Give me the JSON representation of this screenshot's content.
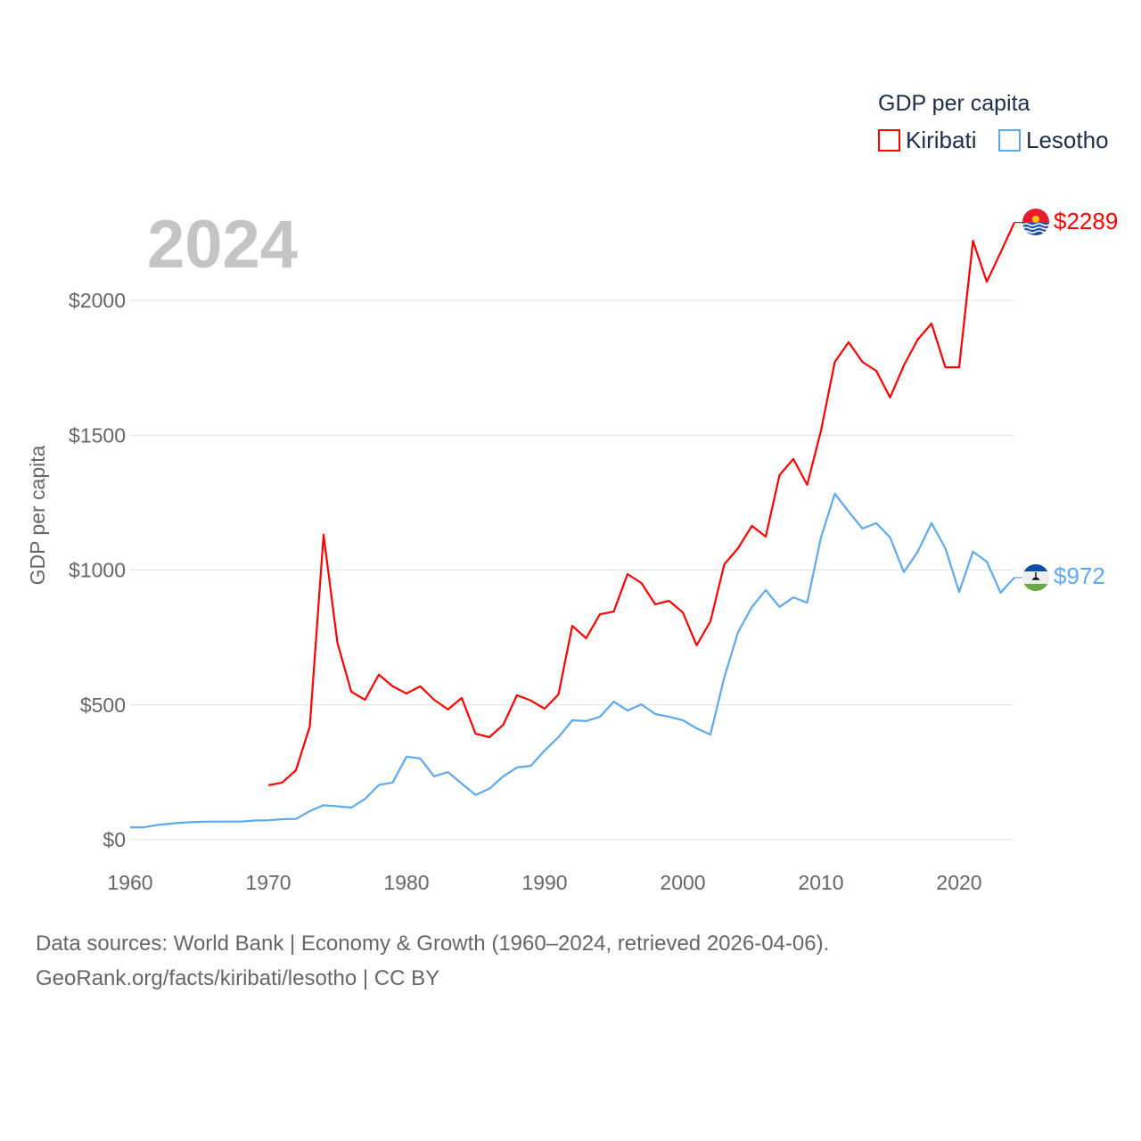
{
  "chart_data": {
    "type": "line",
    "title": "GDP per capita",
    "current_year_label": "2024",
    "ylabel": "GDP per capita",
    "xlabel": "",
    "xlim": [
      1960,
      2024
    ],
    "ylim": [
      0,
      2300
    ],
    "x_ticks": [
      "1960",
      "1970",
      "1980",
      "1990",
      "2000",
      "2010",
      "2020"
    ],
    "x_tick_values": [
      1960,
      1970,
      1980,
      1990,
      2000,
      2010,
      2020
    ],
    "y_ticks": [
      "$0",
      "$500",
      "$1000",
      "$1500",
      "$2000"
    ],
    "y_tick_values": [
      0,
      500,
      1000,
      1500,
      2000
    ],
    "grid": true,
    "legend_position": "top-right",
    "series": [
      {
        "name": "Kiribati",
        "color": "#ff0000",
        "end_label": "$2289",
        "flag": "kiribati-flag",
        "start_year": 1970,
        "values": [
          202,
          212,
          258,
          420,
          1131,
          731,
          549,
          519,
          612,
          569,
          542,
          569,
          519,
          483,
          526,
          393,
          380,
          426,
          536,
          516,
          486,
          539,
          793,
          747,
          836,
          846,
          985,
          952,
          873,
          886,
          843,
          721,
          810,
          1021,
          1081,
          1164,
          1124,
          1352,
          1412,
          1316,
          1517,
          1772,
          1845,
          1772,
          1739,
          1640,
          1759,
          1855,
          1914,
          1752,
          1752,
          2221,
          2069,
          2178,
          2289
        ]
      },
      {
        "name": "Lesotho",
        "color": "#5ea8ee",
        "end_label": "$972",
        "flag": "lesotho-flag",
        "start_year": 1960,
        "values": [
          46,
          46,
          55,
          60,
          64,
          66,
          67,
          67,
          67,
          71,
          72,
          76,
          77,
          106,
          128,
          124,
          119,
          151,
          203,
          212,
          308,
          301,
          235,
          251,
          208,
          166,
          189,
          235,
          268,
          274,
          331,
          380,
          443,
          440,
          456,
          512,
          479,
          502,
          466,
          456,
          443,
          413,
          390,
          602,
          770,
          863,
          926,
          863,
          899,
          879,
          1121,
          1283,
          1217,
          1154,
          1174,
          1121,
          992,
          1068,
          1174,
          1081,
          919,
          1068,
          1031,
          916,
          972
        ]
      }
    ]
  },
  "footer": {
    "line1": "Data sources: World Bank | Economy & Growth (1960–2024, retrieved 2026-04-06).",
    "line2": "GeoRank.org/facts/kiribati/lesotho | CC BY"
  }
}
